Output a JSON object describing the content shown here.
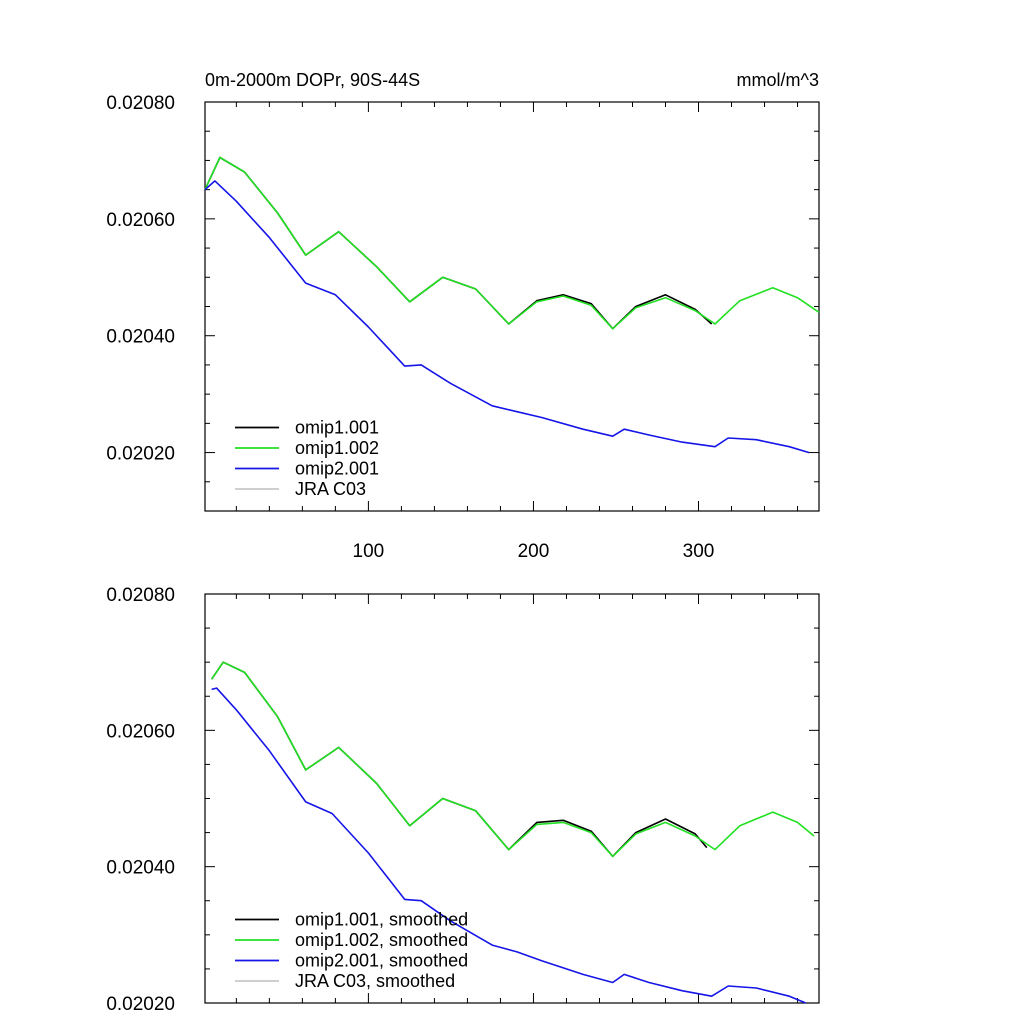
{
  "chart_data": [
    {
      "type": "line",
      "title": "0m-2000m DOPr, 90S-44S",
      "units": "mmol/m^3",
      "xlim": [
        1,
        373
      ],
      "ylim": [
        0.0201,
        0.0208
      ],
      "x_tick_labels": [
        "100",
        "200",
        "300"
      ],
      "y_tick_labels": [
        "0.02020",
        "0.02040",
        "0.02060",
        "0.02080"
      ],
      "legend_position": "bottom-left",
      "series": [
        {
          "name": "omip1.001",
          "color": "#000000",
          "x": [
            1,
            10,
            25,
            45,
            62,
            82,
            105,
            125,
            145,
            165,
            185,
            202,
            218,
            235,
            248,
            262,
            280,
            298,
            308
          ],
          "y": [
            0.02065,
            0.020705,
            0.02068,
            0.02061,
            0.020538,
            0.020578,
            0.020518,
            0.020458,
            0.0205,
            0.02048,
            0.02042,
            0.02046,
            0.02047,
            0.020455,
            0.020412,
            0.02045,
            0.02047,
            0.020445,
            0.02042
          ]
        },
        {
          "name": "omip1.002",
          "color": "#22e022",
          "x": [
            1,
            10,
            25,
            45,
            62,
            82,
            105,
            125,
            145,
            165,
            185,
            202,
            218,
            235,
            248,
            262,
            280,
            298,
            310,
            325,
            345,
            360,
            373
          ],
          "y": [
            0.02065,
            0.020705,
            0.02068,
            0.02061,
            0.020538,
            0.020578,
            0.020518,
            0.020458,
            0.0205,
            0.02048,
            0.02042,
            0.020458,
            0.020468,
            0.020452,
            0.020412,
            0.020448,
            0.020465,
            0.020443,
            0.02042,
            0.02046,
            0.020482,
            0.020465,
            0.02044
          ]
        },
        {
          "name": "omip2.001",
          "color": "#1515e8",
          "x": [
            1,
            7,
            20,
            40,
            62,
            80,
            100,
            122,
            132,
            150,
            175,
            190,
            205,
            230,
            248,
            255,
            270,
            290,
            310,
            318,
            335,
            355,
            367
          ],
          "y": [
            0.02065,
            0.020665,
            0.02063,
            0.020568,
            0.02049,
            0.02047,
            0.020415,
            0.020348,
            0.02035,
            0.020318,
            0.02028,
            0.02027,
            0.02026,
            0.02024,
            0.020228,
            0.02024,
            0.02023,
            0.020218,
            0.02021,
            0.020225,
            0.020222,
            0.02021,
            0.0202
          ]
        },
        {
          "name": "JRA C03",
          "color": "#c8c8c8",
          "x": [],
          "y": []
        }
      ]
    },
    {
      "type": "line",
      "xlim": [
        1,
        373
      ],
      "ylim": [
        0.0202,
        0.0208
      ],
      "y_tick_labels": [
        "0.02020",
        "0.02040",
        "0.02060",
        "0.02080"
      ],
      "legend_position": "bottom-left",
      "series": [
        {
          "name": "omip1.001, smoothed",
          "color": "#000000",
          "x": [
            5,
            12,
            25,
            45,
            62,
            82,
            105,
            125,
            145,
            165,
            185,
            202,
            218,
            235,
            248,
            262,
            280,
            298,
            305
          ],
          "y": [
            0.020675,
            0.0207,
            0.020685,
            0.02062,
            0.020542,
            0.020575,
            0.020522,
            0.02046,
            0.0205,
            0.020482,
            0.020425,
            0.020465,
            0.020468,
            0.020452,
            0.020415,
            0.02045,
            0.02047,
            0.020448,
            0.020428
          ]
        },
        {
          "name": "omip1.002, smoothed",
          "color": "#22e022",
          "x": [
            5,
            12,
            25,
            45,
            62,
            82,
            105,
            125,
            145,
            165,
            185,
            202,
            218,
            235,
            248,
            262,
            280,
            298,
            310,
            325,
            345,
            360,
            370
          ],
          "y": [
            0.020675,
            0.0207,
            0.020685,
            0.02062,
            0.020542,
            0.020575,
            0.020522,
            0.02046,
            0.0205,
            0.020482,
            0.020425,
            0.020462,
            0.020465,
            0.02045,
            0.020415,
            0.020448,
            0.020465,
            0.020445,
            0.020425,
            0.02046,
            0.02048,
            0.020465,
            0.020445
          ]
        },
        {
          "name": "omip2.001, smoothed",
          "color": "#1515e8",
          "x": [
            5,
            8,
            20,
            40,
            62,
            78,
            100,
            122,
            132,
            150,
            175,
            190,
            205,
            230,
            248,
            255,
            270,
            290,
            308,
            318,
            335,
            355,
            365
          ],
          "y": [
            0.02066,
            0.020662,
            0.02063,
            0.02057,
            0.020495,
            0.020478,
            0.02042,
            0.020352,
            0.02035,
            0.02032,
            0.020285,
            0.020275,
            0.020262,
            0.020242,
            0.02023,
            0.020242,
            0.02023,
            0.020218,
            0.02021,
            0.020225,
            0.020222,
            0.02021,
            0.0202
          ]
        },
        {
          "name": "JRA C03, smoothed",
          "color": "#c8c8c8",
          "x": [],
          "y": []
        }
      ]
    }
  ]
}
